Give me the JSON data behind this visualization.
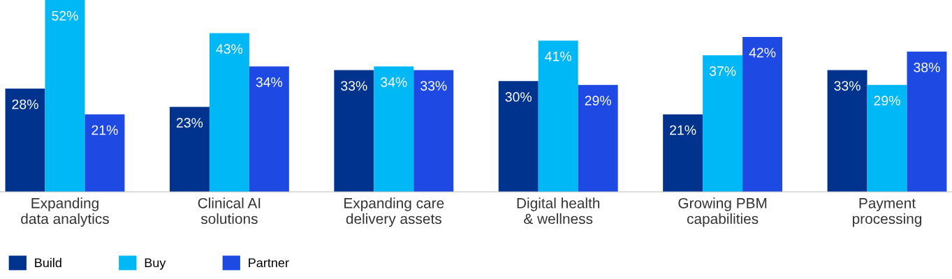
{
  "chart_data": {
    "type": "bar",
    "categories": [
      "Expanding\ndata analytics",
      "Clinical AI\nsolutions",
      "Expanding care\ndelivery assets",
      "Digital health\n& wellness",
      "Growing PBM\ncapabilities",
      "Payment\nprocessing"
    ],
    "series": [
      {
        "name": "Build",
        "color": "#00338d",
        "values": [
          28,
          23,
          33,
          30,
          21,
          33
        ],
        "value_labels": [
          "28%",
          "23%",
          "33%",
          "30%",
          "21%",
          "33%"
        ]
      },
      {
        "name": "Buy",
        "color": "#00b8f5",
        "values": [
          52,
          43,
          34,
          41,
          37,
          29
        ],
        "value_labels": [
          "52%",
          "43%",
          "34%",
          "41%",
          "37%",
          "29%"
        ]
      },
      {
        "name": "Partner",
        "color": "#1e49e2",
        "values": [
          21,
          34,
          33,
          29,
          42,
          38
        ],
        "value_labels": [
          "21%",
          "34%",
          "33%",
          "29%",
          "42%",
          "38%"
        ]
      }
    ],
    "legend": "bottom left"
  }
}
